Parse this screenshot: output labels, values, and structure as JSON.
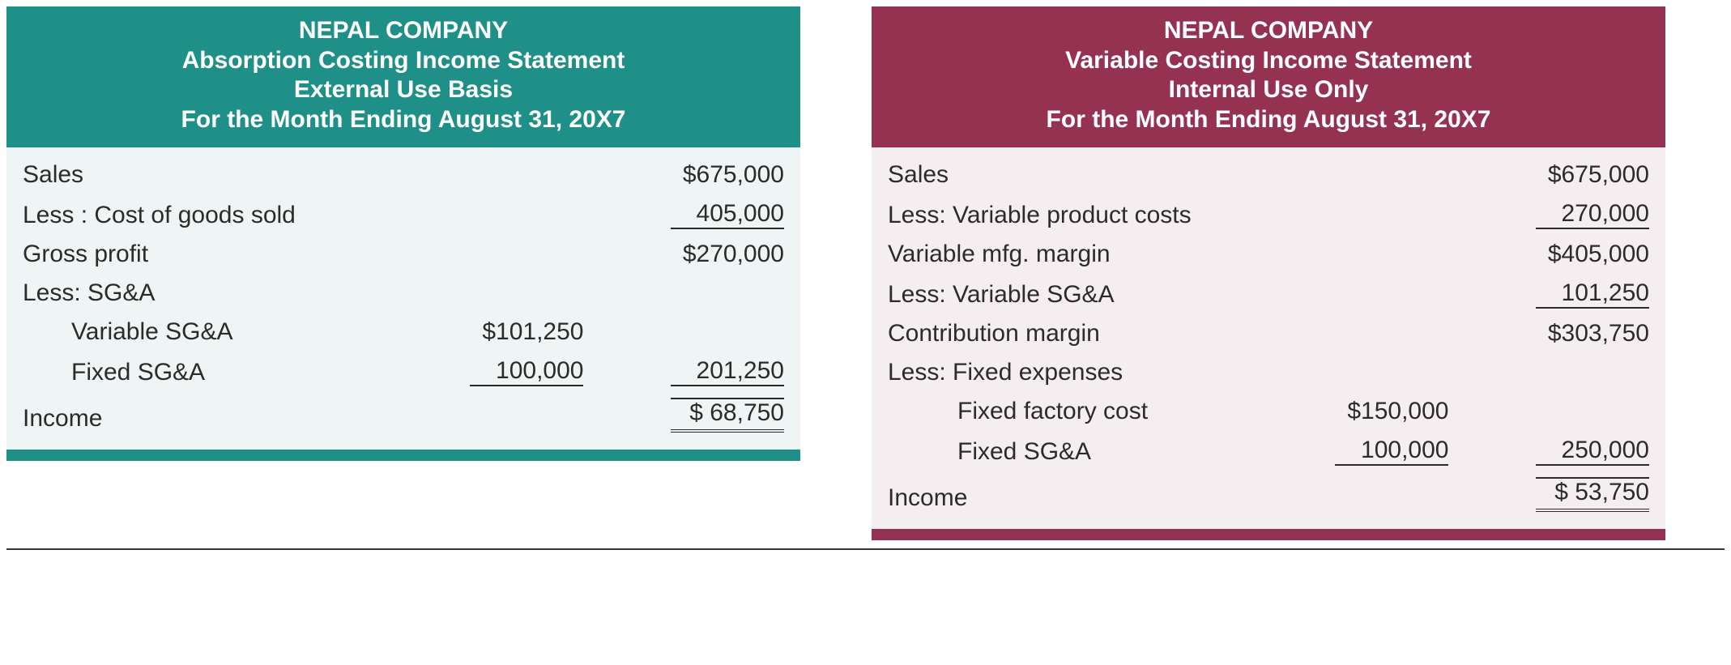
{
  "colors": {
    "teal": "#1f9087",
    "maroon": "#953251",
    "teal_bg": "#eff4f4",
    "maroon_bg": "#f5eef1",
    "text": "#2b2b2b",
    "header_text": "#ffffff",
    "rule": "#2b2b2b"
  },
  "typography": {
    "header_fontsize_pt": 22,
    "header_weight": 700,
    "body_fontsize_pt": 22
  },
  "left": {
    "header": {
      "line1": "NEPAL COMPANY",
      "line2": "Absorption Costing Income Statement",
      "line3": "External Use Basis",
      "line4": "For the Month Ending August 31, 20X7"
    },
    "rows": {
      "sales_label": "Sales",
      "sales_amt": "$675,000",
      "cogs_label": "Less : Cost of goods sold",
      "cogs_amt": "405,000",
      "gross_label": "Gross profit",
      "gross_amt": "$270,000",
      "less_sga_label": "Less:  SG&A",
      "var_sga_label": "Variable SG&A",
      "var_sga_mid": "$101,250",
      "fixed_sga_label": "Fixed SG&A",
      "fixed_sga_mid": "100,000",
      "sga_total_amt": "201,250",
      "income_label": "Income",
      "income_amt": "$  68,750"
    }
  },
  "right": {
    "header": {
      "line1": "NEPAL COMPANY",
      "line2": "Variable Costing Income Statement",
      "line3": "Internal Use Only",
      "line4": "For the Month Ending August 31, 20X7"
    },
    "rows": {
      "sales_label": "Sales",
      "sales_amt": "$675,000",
      "varprod_label": "Less: Variable product costs",
      "varprod_amt": "270,000",
      "varmfg_label": "Variable mfg. margin",
      "varmfg_amt": "$405,000",
      "less_varsga_label": "Less:  Variable SG&A",
      "less_varsga_amt": "101,250",
      "contrib_label": "Contribution margin",
      "contrib_amt": "$303,750",
      "less_fixed_label": "Less: Fixed expenses",
      "fixed_factory_label": "Fixed factory cost",
      "fixed_factory_mid": "$150,000",
      "fixed_sga_label": "Fixed SG&A",
      "fixed_sga_mid": "100,000",
      "fixed_total_amt": "250,000",
      "income_label": "Income",
      "income_amt": "$  53,750"
    }
  }
}
